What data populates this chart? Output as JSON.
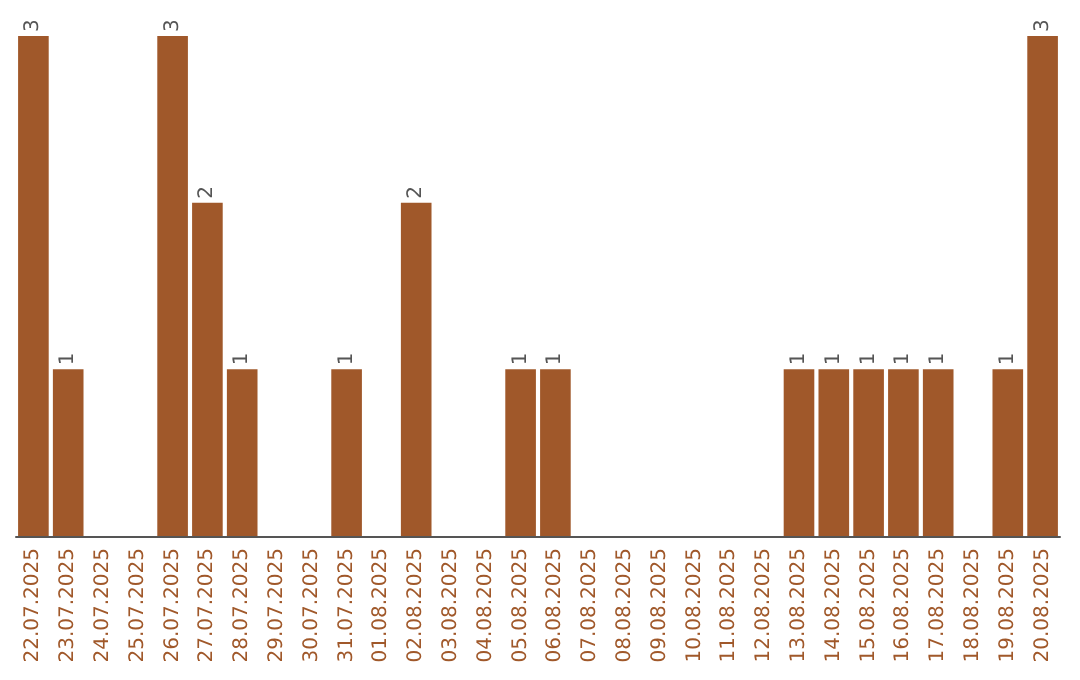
{
  "chart_data": {
    "type": "bar",
    "categories": [
      "22.07.2025",
      "23.07.2025",
      "24.07.2025",
      "25.07.2025",
      "26.07.2025",
      "27.07.2025",
      "28.07.2025",
      "29.07.2025",
      "30.07.2025",
      "31.07.2025",
      "01.08.2025",
      "02.08.2025",
      "03.08.2025",
      "04.08.2025",
      "05.08.2025",
      "06.08.2025",
      "07.08.2025",
      "08.08.2025",
      "09.08.2025",
      "10.08.2025",
      "11.08.2025",
      "12.08.2025",
      "13.08.2025",
      "14.08.2025",
      "15.08.2025",
      "16.08.2025",
      "17.08.2025",
      "18.08.2025",
      "19.08.2025",
      "20.08.2025"
    ],
    "values": [
      3,
      1,
      0,
      0,
      3,
      2,
      1,
      0,
      0,
      1,
      0,
      2,
      0,
      0,
      1,
      1,
      0,
      0,
      0,
      0,
      0,
      0,
      1,
      1,
      1,
      1,
      1,
      0,
      1,
      3
    ],
    "value_labels": [
      "3",
      "1",
      null,
      null,
      "3",
      "2",
      "1",
      null,
      null,
      "1",
      null,
      "2",
      null,
      null,
      "1",
      "1",
      null,
      null,
      null,
      null,
      null,
      null,
      "1",
      "1",
      "1",
      "1",
      "1",
      null,
      "1",
      "3"
    ],
    "color": "#a0582a"
  }
}
